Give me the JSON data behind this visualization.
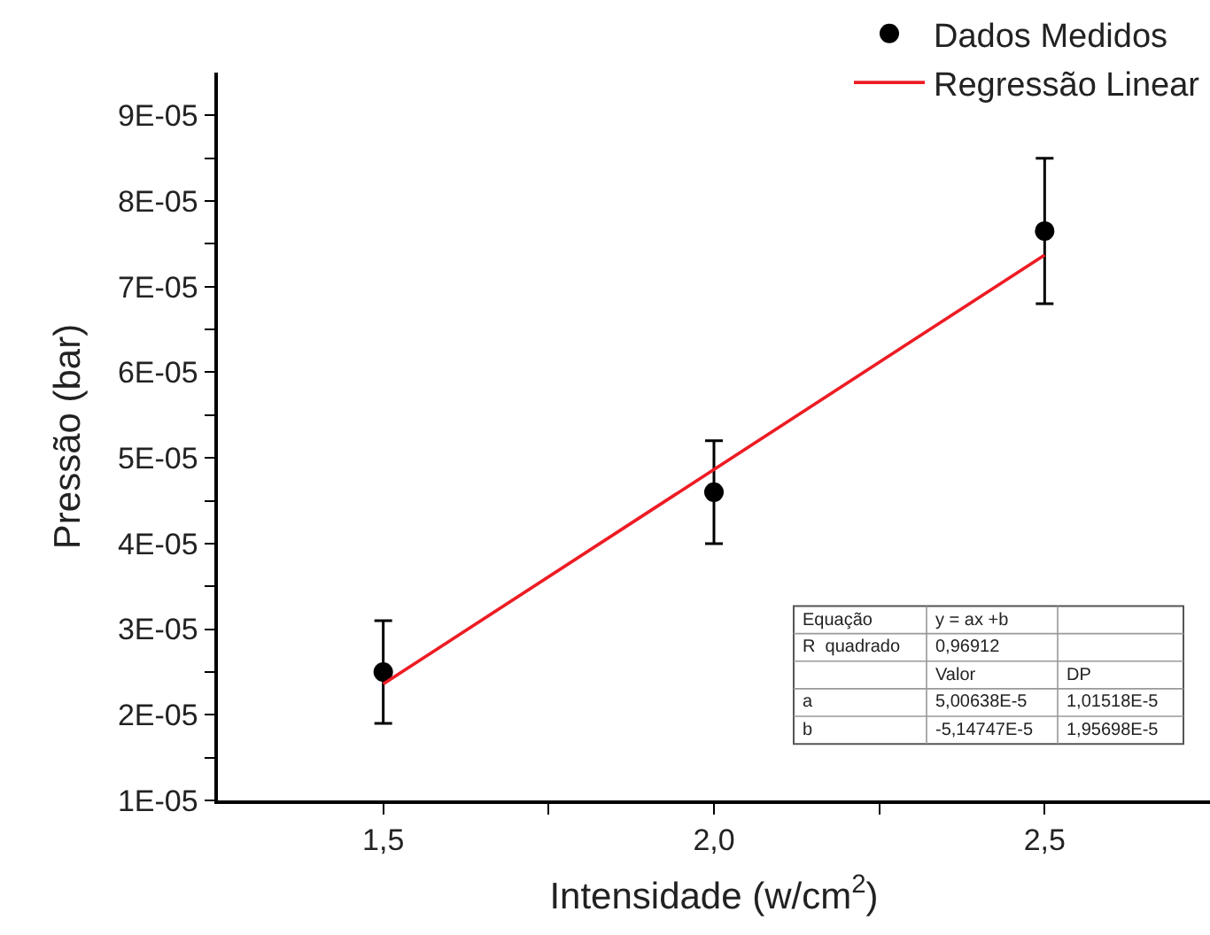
{
  "chart_data": {
    "type": "scatter",
    "xlabel": "Intensidade (w/cm$^{2}$)",
    "ylabel": "Pressão (bar)",
    "series": [
      {
        "name": "Dados Medidos",
        "color": "#000000",
        "marker": "circle",
        "x": [
          1.5,
          2.0,
          2.5
        ],
        "values": [
          2.5e-05,
          4.6e-05,
          7.65e-05
        ],
        "errors": [
          [
            1.9e-05,
            3.1e-05
          ],
          [
            4e-05,
            5.2e-05
          ],
          [
            6.8e-05,
            8.5e-05
          ]
        ]
      },
      {
        "name": "Regressão Linear",
        "type": "line",
        "color": "#ed1c24",
        "marker": "none",
        "line_style": "solid",
        "x": [
          1.5,
          2.5
        ],
        "values": [
          2.36e-05,
          7.37e-05
        ]
      }
    ],
    "xlim": [
      1.25,
      2.75
    ],
    "xticks": [
      {
        "value": 1.5,
        "label": "1,5"
      },
      {
        "value": 1.75,
        "label": null
      },
      {
        "value": 2.0,
        "label": "2,0"
      },
      {
        "value": 2.25,
        "label": null
      },
      {
        "value": 2.5,
        "label": "2,5"
      }
    ],
    "ylim": [
      1e-05,
      9.5e-05
    ],
    "yticks": [
      {
        "value": 1e-05,
        "label": "1E-05"
      },
      {
        "value": 1.5e-05,
        "label": null
      },
      {
        "value": 2e-05,
        "label": "2E-05"
      },
      {
        "value": 2.5e-05,
        "label": null
      },
      {
        "value": 3e-05,
        "label": "3E-05"
      },
      {
        "value": 3.5e-05,
        "label": null
      },
      {
        "value": 4e-05,
        "label": "4E-05"
      },
      {
        "value": 4.5e-05,
        "label": null
      },
      {
        "value": 5e-05,
        "label": "5E-05"
      },
      {
        "value": 5.5e-05,
        "label": null
      },
      {
        "value": 6e-05,
        "label": "6E-05"
      },
      {
        "value": 6.5e-05,
        "label": null
      },
      {
        "value": 7e-05,
        "label": "7E-05"
      },
      {
        "value": 7.5e-05,
        "label": null
      },
      {
        "value": 8e-05,
        "label": "8E-05"
      },
      {
        "value": 8.5e-05,
        "label": null
      },
      {
        "value": 9e-05,
        "label": "9E-05"
      }
    ],
    "grid": false,
    "legend": "top right",
    "annotations": [
      "Equação",
      "y = ax +b",
      "R  quadrado",
      "0,96912",
      "Valor",
      "DP",
      "a",
      "5,00638E-5",
      "1,01518E-5",
      "b",
      "-5,14747E-5",
      "1,95698E-5"
    ]
  }
}
